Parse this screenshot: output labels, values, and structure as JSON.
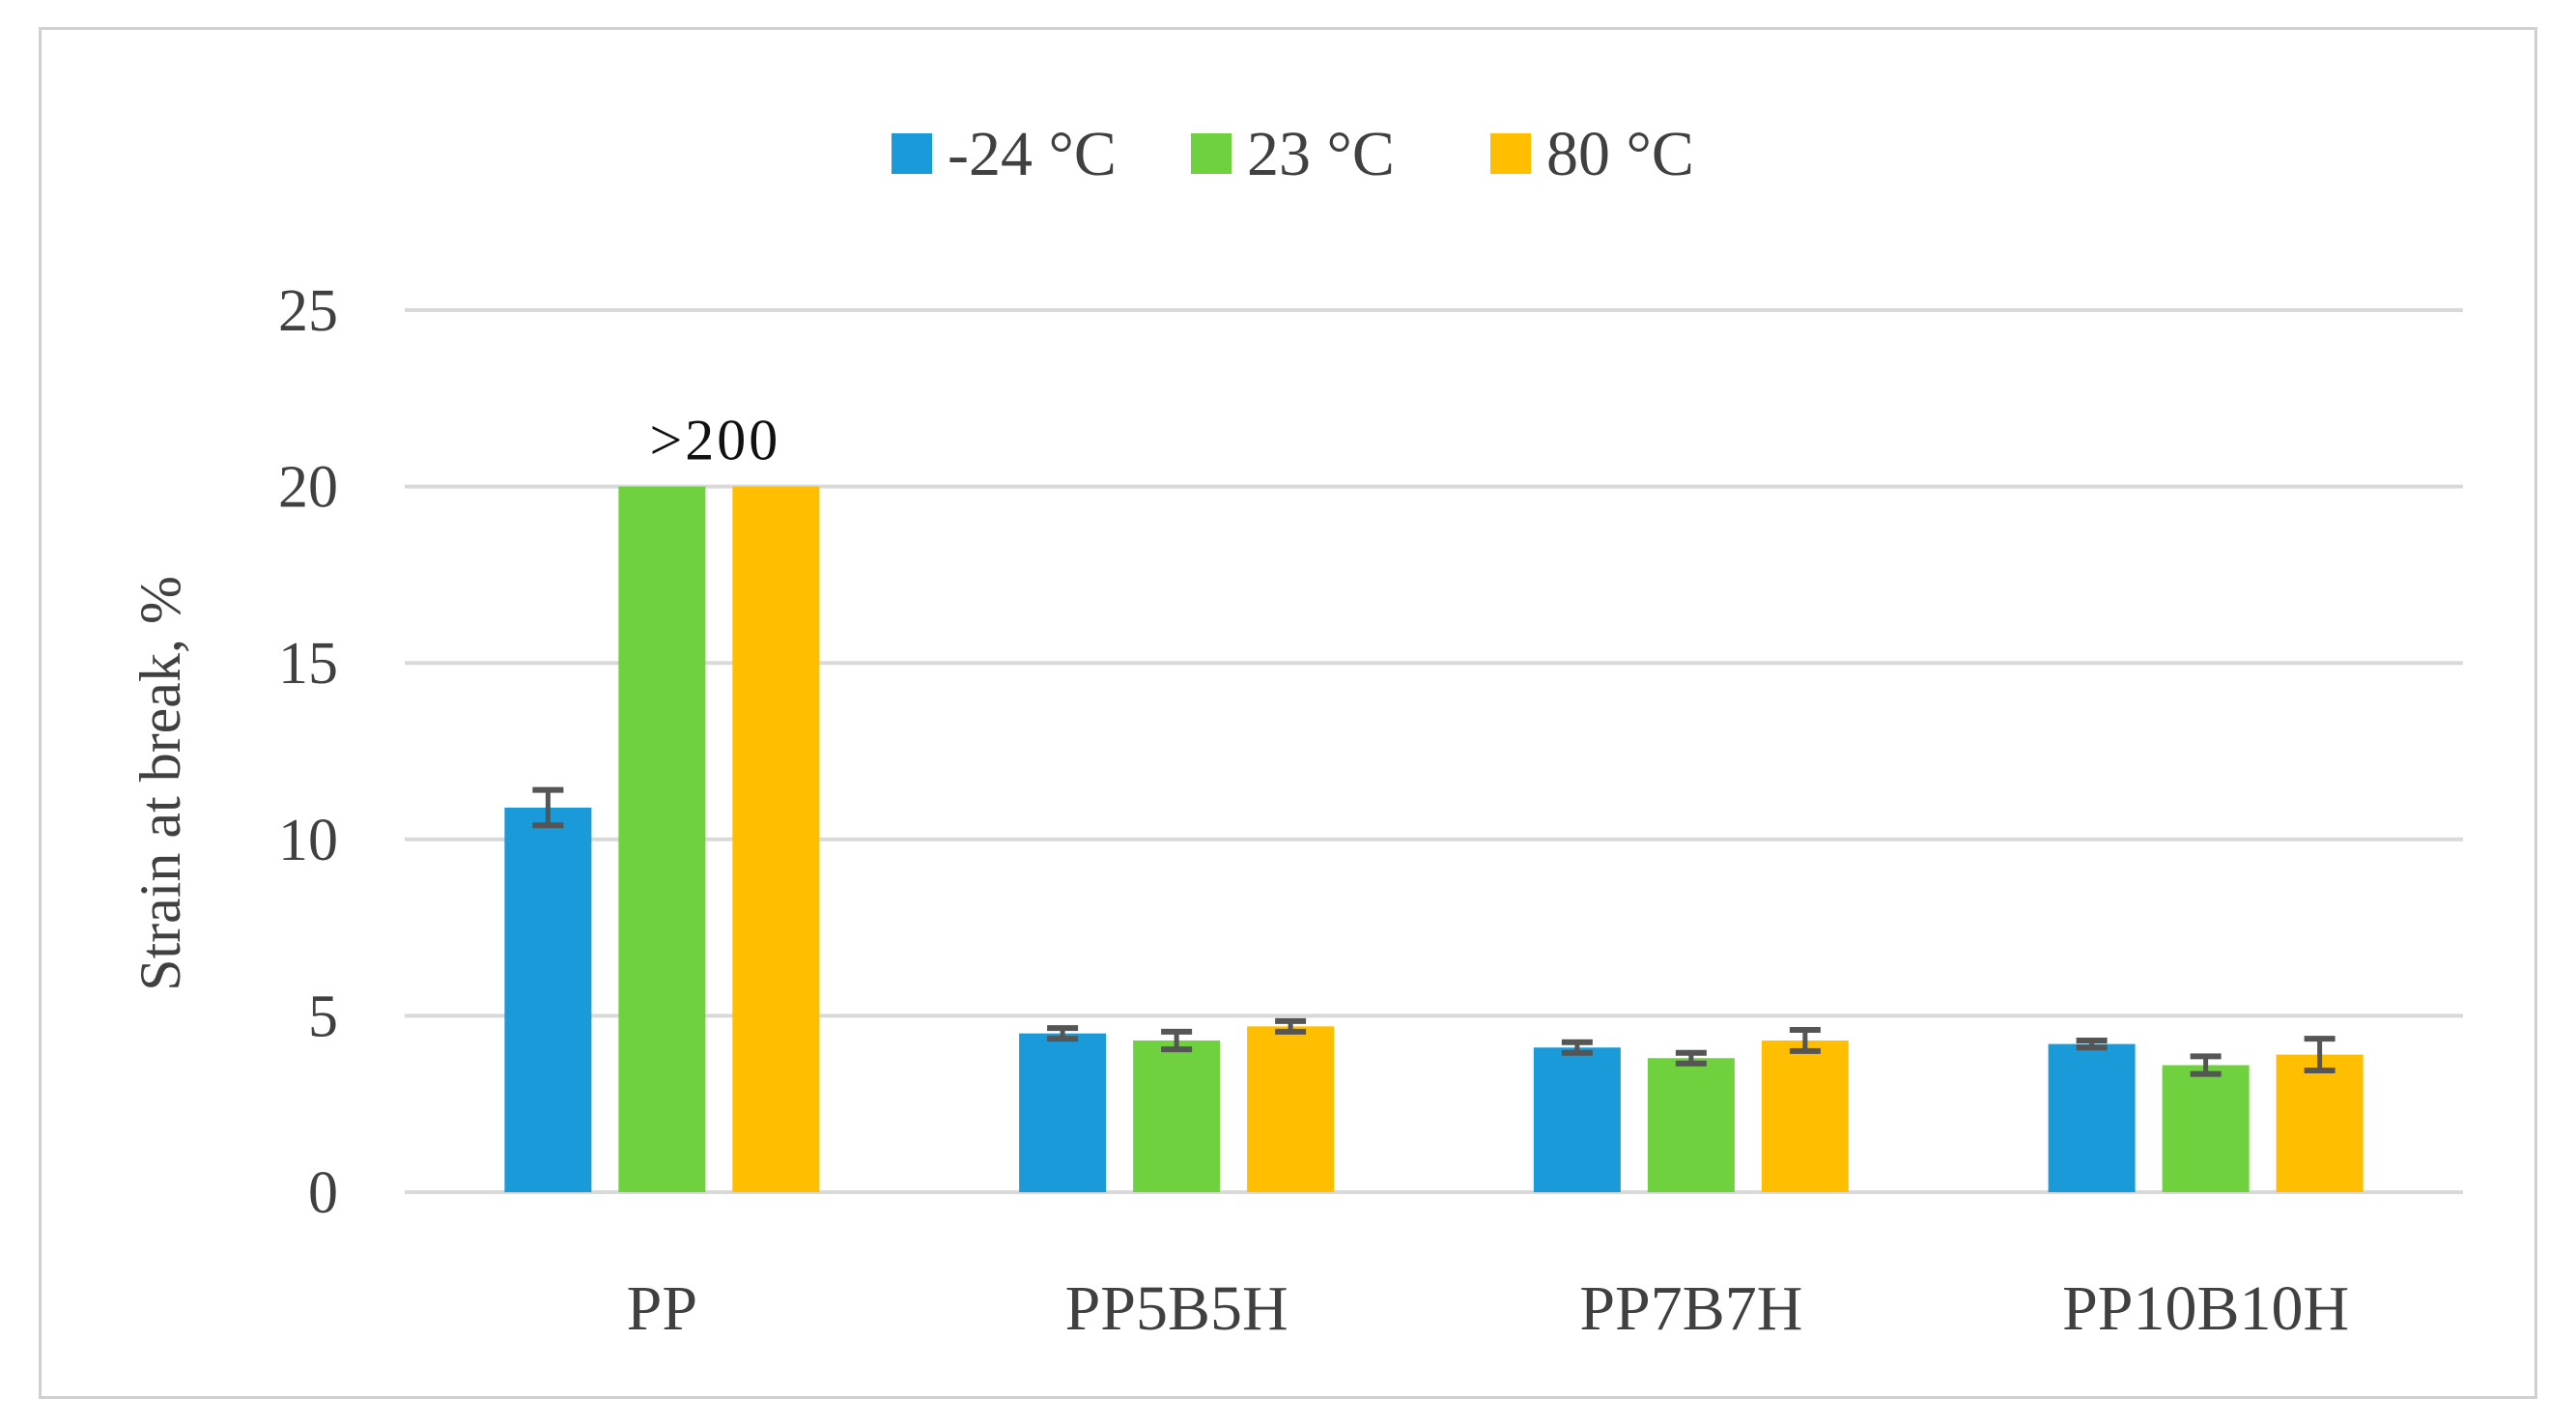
{
  "chart_data": {
    "type": "bar",
    "title": "",
    "xlabel": "",
    "ylabel": "Strain at break, %",
    "ylim": [
      0,
      25
    ],
    "yticks": [
      0,
      5,
      10,
      15,
      20,
      25
    ],
    "grid": true,
    "legend_position": "top-center",
    "categories": [
      "PP",
      "PP5B5H",
      "PP7B7H",
      "PP10B10H"
    ],
    "series": [
      {
        "name": "-24 °C",
        "color": "#1a9ad9",
        "values": [
          10.9,
          4.5,
          4.1,
          4.2
        ],
        "errors": [
          0.5,
          0.15,
          0.15,
          0.1
        ]
      },
      {
        "name": "23 °C",
        "color": "#6ed13d",
        "values": [
          20,
          4.3,
          3.8,
          3.6
        ],
        "errors": [
          0,
          0.25,
          0.15,
          0.25
        ]
      },
      {
        "name": "80 °C",
        "color": "#ffbf00",
        "values": [
          20,
          4.7,
          4.3,
          3.9
        ],
        "errors": [
          0,
          0.15,
          0.3,
          0.45
        ]
      }
    ],
    "annotations": [
      {
        "text": ">200",
        "category": "PP",
        "y": 20
      }
    ]
  }
}
